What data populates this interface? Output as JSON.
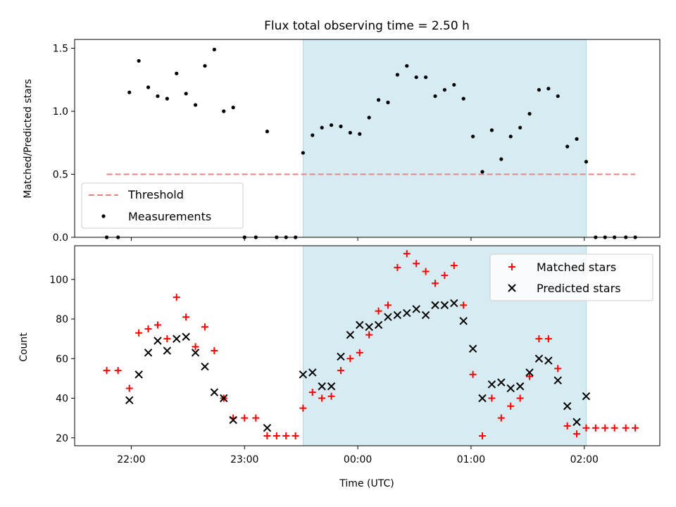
{
  "title": "Flux total observing time = 2.50 h",
  "colors": {
    "band": "#add8e6",
    "threshold": "#f08080",
    "matched": "#ff0000",
    "predicted": "#000000",
    "measurements": "#000000"
  },
  "chart_data": [
    {
      "type": "scatter",
      "panel": "top",
      "xlabel": "",
      "ylabel": "Matched/Predicted stars",
      "ylim": [
        0,
        1.57
      ],
      "yticks": [
        0.0,
        0.5,
        1.0,
        1.5
      ],
      "ytick_labels": [
        "0.0",
        "0.5",
        "1.0",
        "1.5"
      ],
      "x_unit": "minutes relative to 00:00 UTC",
      "xlim": [
        -150,
        160
      ],
      "shaded_region": [
        -29,
        121
      ],
      "legend": {
        "placement": "lower-left",
        "entries": [
          "Threshold",
          "Measurements"
        ]
      },
      "threshold": {
        "name": "Threshold",
        "y": 0.5,
        "x_range": [
          -133,
          147
        ]
      },
      "series": [
        {
          "name": "Measurements",
          "marker": "dot",
          "x": [
            -133,
            -127,
            -121,
            -116,
            -111,
            -106,
            -101,
            -96,
            -91,
            -86,
            -81,
            -76,
            -71,
            -66,
            -60,
            -54,
            -48,
            -43,
            -38,
            -33,
            -29,
            -24,
            -19,
            -14,
            -9,
            -4,
            1,
            6,
            11,
            16,
            21,
            26,
            31,
            36,
            41,
            46,
            51,
            56,
            61,
            66,
            71,
            76,
            81,
            86,
            91,
            96,
            101,
            106,
            111,
            116,
            121,
            126,
            131,
            136,
            142,
            147
          ],
          "y": [
            0.0,
            0.0,
            1.15,
            1.4,
            1.19,
            1.12,
            1.1,
            1.3,
            1.14,
            1.05,
            1.36,
            1.49,
            1.0,
            1.03,
            0.0,
            0.0,
            0.84,
            0.0,
            0.0,
            0.0,
            0.67,
            0.81,
            0.87,
            0.89,
            0.88,
            0.83,
            0.82,
            0.95,
            1.09,
            1.07,
            1.29,
            1.36,
            1.27,
            1.27,
            1.12,
            1.17,
            1.21,
            1.1,
            0.8,
            0.52,
            0.85,
            0.62,
            0.8,
            0.87,
            0.98,
            1.17,
            1.18,
            1.12,
            0.72,
            0.78,
            0.6,
            0.0,
            0.0,
            0.0,
            0.0,
            0.0
          ]
        }
      ]
    },
    {
      "type": "scatter",
      "panel": "bottom",
      "xlabel": "Time (UTC)",
      "ylabel": "Count",
      "ylim": [
        16,
        117
      ],
      "yticks": [
        20,
        40,
        60,
        80,
        100
      ],
      "ytick_labels": [
        "20",
        "40",
        "60",
        "80",
        "100"
      ],
      "x_unit": "minutes relative to 00:00 UTC",
      "xlim": [
        -150,
        160
      ],
      "xticks": [
        -120,
        -60,
        0,
        60,
        120
      ],
      "xtick_labels": [
        "22:00",
        "23:00",
        "00:00",
        "01:00",
        "02:00"
      ],
      "shaded_region": [
        -29,
        121
      ],
      "legend": {
        "placement": "top-right",
        "entries": [
          "Matched stars",
          "Predicted stars"
        ]
      },
      "series": [
        {
          "name": "Matched stars",
          "marker": "plus",
          "x": [
            -133,
            -127,
            -121,
            -116,
            -111,
            -106,
            -101,
            -96,
            -91,
            -86,
            -81,
            -76,
            -71,
            -66,
            -60,
            -54,
            -48,
            -43,
            -38,
            -33,
            -29,
            -24,
            -19,
            -14,
            -9,
            -4,
            1,
            6,
            11,
            16,
            21,
            26,
            31,
            36,
            41,
            46,
            51,
            56,
            61,
            66,
            71,
            76,
            81,
            86,
            91,
            96,
            101,
            106,
            111,
            116,
            121,
            126,
            131,
            136,
            142,
            147
          ],
          "y": [
            54,
            54,
            45,
            73,
            75,
            77,
            70,
            91,
            81,
            66,
            76,
            64,
            40,
            30,
            30,
            30,
            21,
            21,
            21,
            21,
            35,
            43,
            40,
            41,
            54,
            60,
            63,
            72,
            84,
            87,
            106,
            113,
            108,
            104,
            98,
            102,
            107,
            87,
            52,
            21,
            40,
            30,
            36,
            40,
            51,
            70,
            70,
            55,
            26,
            22,
            25,
            25,
            25,
            25,
            25,
            25
          ]
        },
        {
          "name": "Predicted stars",
          "marker": "x",
          "x": [
            -121,
            -116,
            -111,
            -106,
            -101,
            -96,
            -91,
            -86,
            -81,
            -76,
            -71,
            -66,
            -48,
            -29,
            -24,
            -19,
            -14,
            -9,
            -4,
            1,
            6,
            11,
            16,
            21,
            26,
            31,
            36,
            41,
            46,
            51,
            56,
            61,
            66,
            71,
            76,
            81,
            86,
            91,
            96,
            101,
            106,
            111,
            116,
            121
          ],
          "y": [
            39,
            52,
            63,
            69,
            64,
            70,
            71,
            63,
            56,
            43,
            40,
            29,
            25,
            52,
            53,
            46,
            46,
            61,
            72,
            77,
            76,
            77,
            81,
            82,
            83,
            85,
            82,
            87,
            87,
            88,
            79,
            65,
            40,
            47,
            48,
            45,
            46,
            53,
            60,
            59,
            49,
            36,
            28,
            41
          ]
        }
      ]
    }
  ]
}
